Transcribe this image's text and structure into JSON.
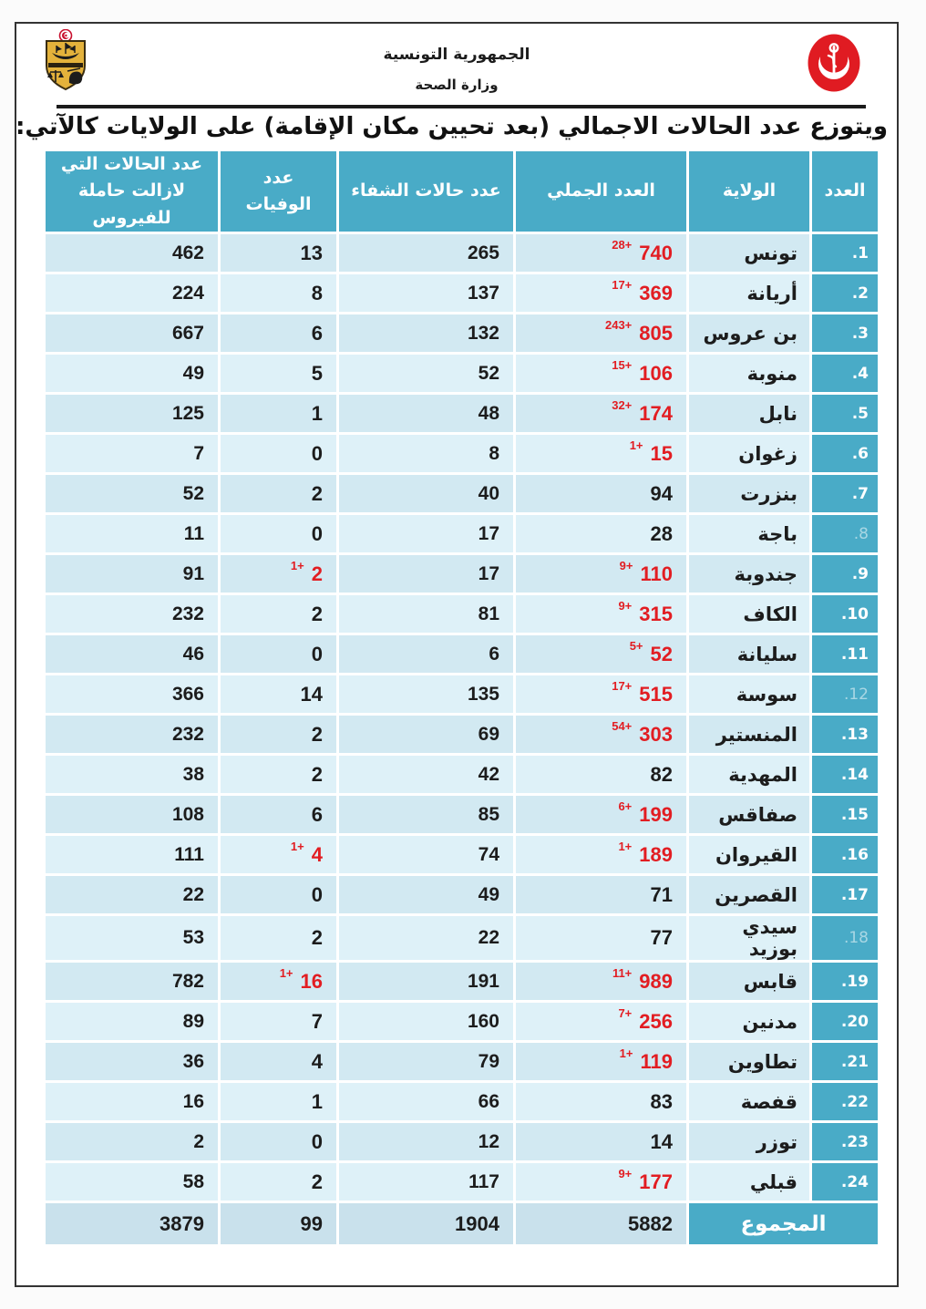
{
  "letterhead": {
    "republic": "الجمهورية التونسية",
    "ministry": "وزارة الصحة",
    "coat_of_arms_icon": "tunisia-coat-of-arms",
    "health_logo_icon": "ministry-of-health-logo"
  },
  "title": {
    "part1": "ويتوزع عدد الحالات الاجمالي (",
    "bold": "بعد تحيين مكان الإقامة",
    "part2": ") على الولايات كالآتي:"
  },
  "colors": {
    "header_teal": "#49abc7",
    "row_band_dark": "#d2e9f2",
    "row_band_light": "#def1f8",
    "total_row_bg": "#c9e1ec",
    "highlight_red": "#e21d22",
    "frame_border": "#333333"
  },
  "table": {
    "columns": {
      "num": "العدد",
      "governorate": "الولاية",
      "total": "العدد الجملي",
      "recovered": "عدد حالات الشفاء",
      "deaths": "عدد الوفيات",
      "active": "عدد الحالات التي لازالت حاملة للفيروس"
    },
    "rows": [
      {
        "num": ".1",
        "name": "تونس",
        "total": "740",
        "total_delta": "28+",
        "total_red": true,
        "recovered": "265",
        "deaths": "13",
        "active": "462"
      },
      {
        "num": ".2",
        "name": "أريانة",
        "total": "369",
        "total_delta": "17+",
        "total_red": true,
        "recovered": "137",
        "deaths": "8",
        "active": "224"
      },
      {
        "num": ".3",
        "name": "بن عروس",
        "total": "805",
        "total_delta": "243+",
        "total_red": true,
        "recovered": "132",
        "deaths": "6",
        "active": "667"
      },
      {
        "num": ".4",
        "name": "منوبة",
        "total": "106",
        "total_delta": "15+",
        "total_red": true,
        "recovered": "52",
        "deaths": "5",
        "active": "49"
      },
      {
        "num": ".5",
        "name": "نابل",
        "total": "174",
        "total_delta": "32+",
        "total_red": true,
        "recovered": "48",
        "deaths": "1",
        "active": "125"
      },
      {
        "num": ".6",
        "name": "زغوان",
        "total": "15",
        "total_delta": "1+",
        "total_red": true,
        "recovered": "8",
        "deaths": "0",
        "active": "7"
      },
      {
        "num": ".7",
        "name": "بنزرت",
        "total": "94",
        "recovered": "40",
        "deaths": "2",
        "active": "52"
      },
      {
        "num": ".8",
        "name": "باجة",
        "total": "28",
        "recovered": "17",
        "deaths": "0",
        "active": "11",
        "num_faded": true
      },
      {
        "num": ".9",
        "name": "جندوبة",
        "total": "110",
        "total_delta": "9+",
        "total_red": true,
        "recovered": "17",
        "deaths": "2",
        "deaths_delta": "1+",
        "deaths_red": true,
        "active": "91"
      },
      {
        "num": ".10",
        "name": "الكاف",
        "total": "315",
        "total_delta": "9+",
        "total_red": true,
        "recovered": "81",
        "deaths": "2",
        "active": "232"
      },
      {
        "num": ".11",
        "name": "سليانة",
        "total": "52",
        "total_delta": "5+",
        "total_red": true,
        "recovered": "6",
        "deaths": "0",
        "active": "46"
      },
      {
        "num": ".12",
        "name": "سوسة",
        "total": "515",
        "total_delta": "17+",
        "total_red": true,
        "recovered": "135",
        "deaths": "14",
        "active": "366",
        "num_faded": true
      },
      {
        "num": ".13",
        "name": "المنستير",
        "total": "303",
        "total_delta": "54+",
        "total_red": true,
        "recovered": "69",
        "deaths": "2",
        "active": "232"
      },
      {
        "num": ".14",
        "name": "المهدية",
        "total": "82",
        "recovered": "42",
        "deaths": "2",
        "active": "38"
      },
      {
        "num": ".15",
        "name": "صفاقس",
        "total": "199",
        "total_delta": "6+",
        "total_red": true,
        "recovered": "85",
        "deaths": "6",
        "active": "108"
      },
      {
        "num": ".16",
        "name": "القيروان",
        "total": "189",
        "total_delta": "1+",
        "total_red": true,
        "recovered": "74",
        "deaths": "4",
        "deaths_delta": "1+",
        "deaths_red": true,
        "active": "111"
      },
      {
        "num": ".17",
        "name": "القصرين",
        "total": "71",
        "recovered": "49",
        "deaths": "0",
        "active": "22"
      },
      {
        "num": ".18",
        "name": "سيدي بوزيد",
        "total": "77",
        "recovered": "22",
        "deaths": "2",
        "active": "53",
        "num_faded": true
      },
      {
        "num": ".19",
        "name": "قابس",
        "total": "989",
        "total_delta": "11+",
        "total_red": true,
        "recovered": "191",
        "deaths": "16",
        "deaths_delta": "1+",
        "deaths_red": true,
        "active": "782"
      },
      {
        "num": ".20",
        "name": "مدنين",
        "total": "256",
        "total_delta": "7+",
        "total_red": true,
        "recovered": "160",
        "deaths": "7",
        "active": "89"
      },
      {
        "num": ".21",
        "name": "تطاوين",
        "total": "119",
        "total_delta": "1+",
        "total_red": true,
        "recovered": "79",
        "deaths": "4",
        "active": "36"
      },
      {
        "num": ".22",
        "name": "قفصة",
        "total": "83",
        "recovered": "66",
        "deaths": "1",
        "active": "16"
      },
      {
        "num": ".23",
        "name": "توزر",
        "total": "14",
        "recovered": "12",
        "deaths": "0",
        "active": "2"
      },
      {
        "num": ".24",
        "name": "قبلي",
        "total": "177",
        "total_delta": "9+",
        "total_red": true,
        "recovered": "117",
        "deaths": "2",
        "active": "58"
      }
    ],
    "total_row": {
      "label": "المجموع",
      "total": "5882",
      "recovered": "1904",
      "deaths": "99",
      "active": "3879"
    }
  }
}
